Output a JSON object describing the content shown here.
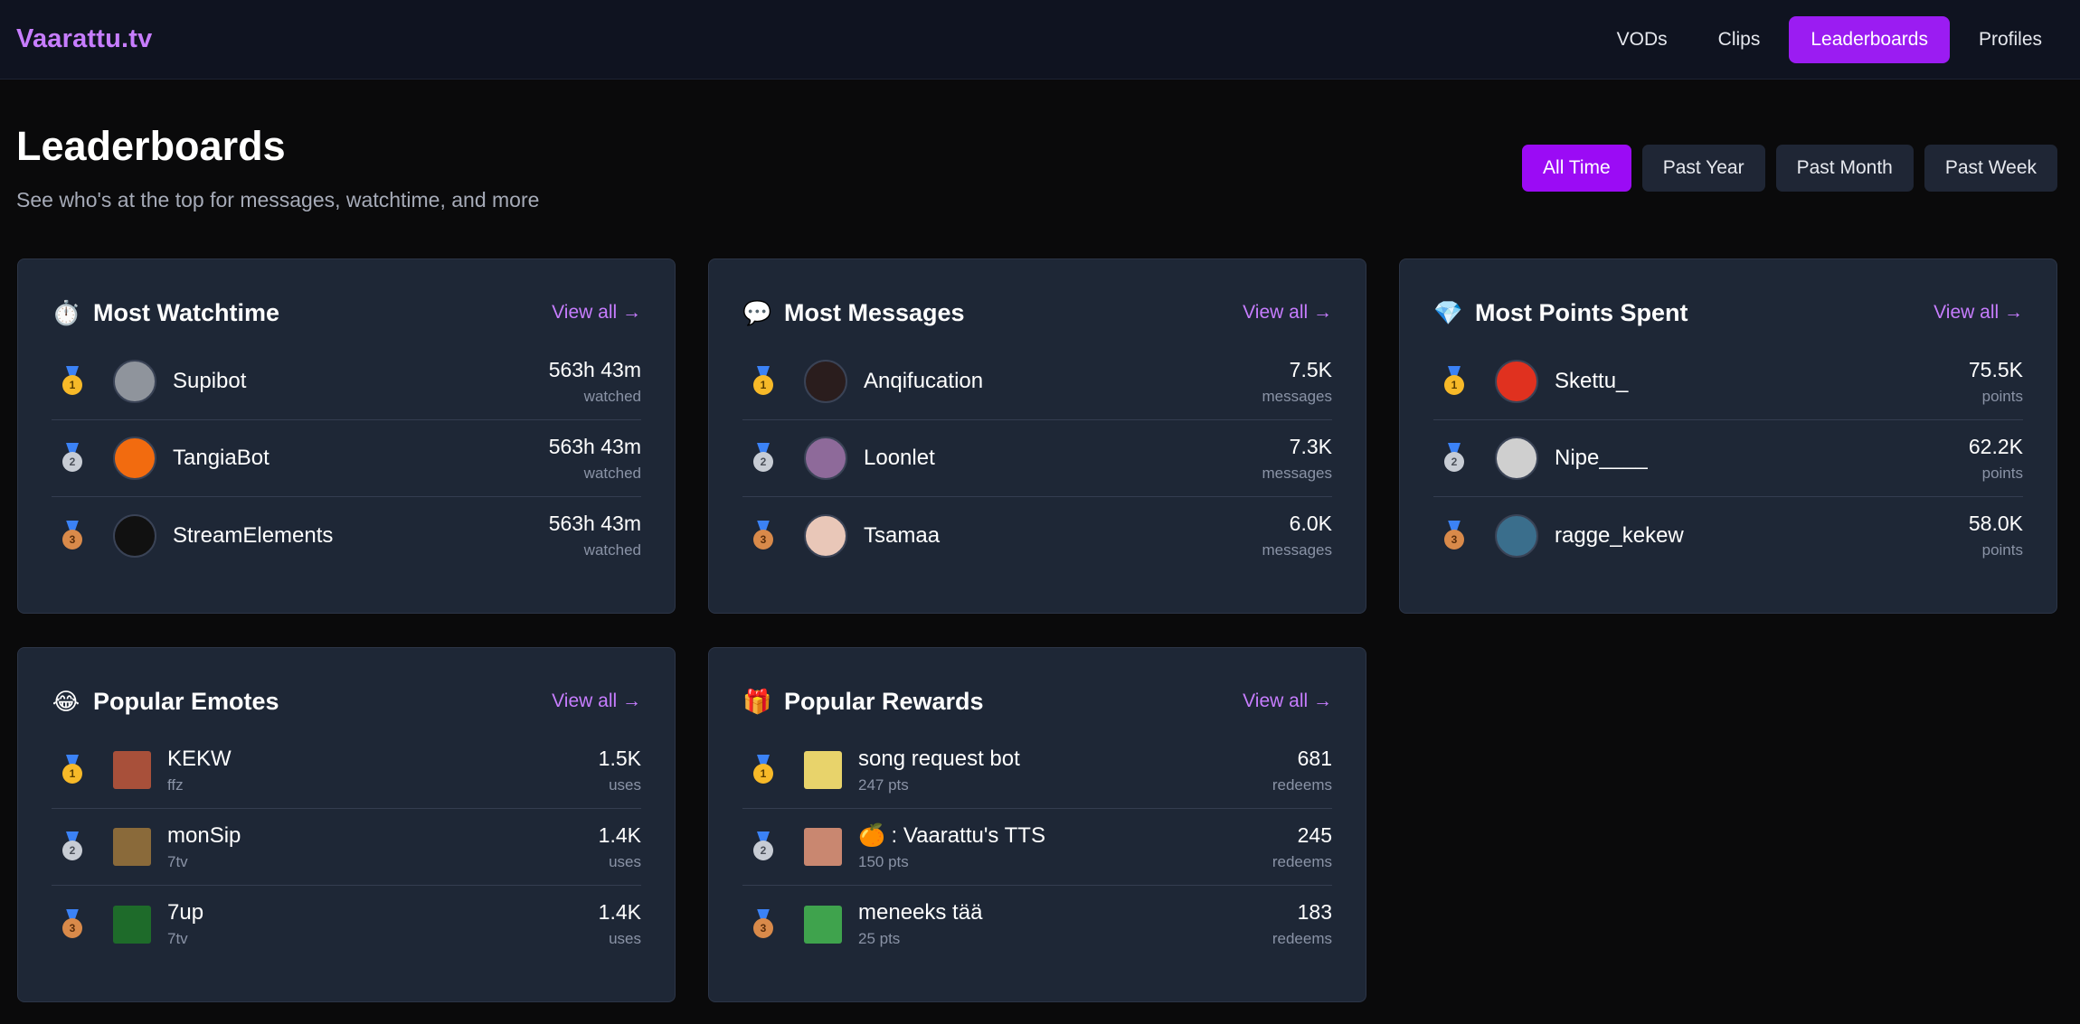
{
  "brand": "Vaarattu.tv",
  "nav": [
    {
      "label": "VODs",
      "active": false
    },
    {
      "label": "Clips",
      "active": false
    },
    {
      "label": "Leaderboards",
      "active": true
    },
    {
      "label": "Profiles",
      "active": false
    }
  ],
  "page": {
    "title": "Leaderboards",
    "subtitle": "See who's at the top for messages, watchtime, and more"
  },
  "filters": [
    {
      "label": "All Time",
      "active": true
    },
    {
      "label": "Past Year",
      "active": false
    },
    {
      "label": "Past Month",
      "active": false
    },
    {
      "label": "Past Week",
      "active": false
    }
  ],
  "view_all_label": "View all →",
  "cards": {
    "watchtime": {
      "title": "Most Watchtime",
      "icon": "⏱️",
      "entries": [
        {
          "rank": "1",
          "name": "Supibot",
          "value": "563h 43m",
          "unit": "watched",
          "avatar_color": "#8f949c"
        },
        {
          "rank": "2",
          "name": "TangiaBot",
          "value": "563h 43m",
          "unit": "watched",
          "avatar_color": "#f26b0f"
        },
        {
          "rank": "3",
          "name": "StreamElements",
          "value": "563h 43m",
          "unit": "watched",
          "avatar_color": "#111111"
        }
      ]
    },
    "messages": {
      "title": "Most Messages",
      "icon": "💬",
      "entries": [
        {
          "rank": "1",
          "name": "Anqifucation",
          "value": "7.5K",
          "unit": "messages",
          "avatar_color": "#2a1d1d"
        },
        {
          "rank": "2",
          "name": "Loonlet",
          "value": "7.3K",
          "unit": "messages",
          "avatar_color": "#8e6a9a"
        },
        {
          "rank": "3",
          "name": "Tsamaa",
          "value": "6.0K",
          "unit": "messages",
          "avatar_color": "#e9c7b8"
        }
      ]
    },
    "points": {
      "title": "Most Points Spent",
      "icon": "💎",
      "entries": [
        {
          "rank": "1",
          "name": "Skettu_",
          "value": "75.5K",
          "unit": "points",
          "avatar_color": "#e0311f"
        },
        {
          "rank": "2",
          "name": "Nipe____",
          "value": "62.2K",
          "unit": "points",
          "avatar_color": "#cfcfcf"
        },
        {
          "rank": "3",
          "name": "ragge_kekew",
          "value": "58.0K",
          "unit": "points",
          "avatar_color": "#3a6e8c"
        }
      ]
    },
    "emotes": {
      "title": "Popular Emotes",
      "icon": "😂",
      "entries": [
        {
          "rank": "1",
          "name": "KEKW",
          "sub": "ffz",
          "value": "1.5K",
          "unit": "uses",
          "thumb_color": "#a8503a"
        },
        {
          "rank": "2",
          "name": "monSip",
          "sub": "7tv",
          "value": "1.4K",
          "unit": "uses",
          "thumb_color": "#8a6a3a"
        },
        {
          "rank": "3",
          "name": "7up",
          "sub": "7tv",
          "value": "1.4K",
          "unit": "uses",
          "thumb_color": "#1e6b2a"
        }
      ]
    },
    "rewards": {
      "title": "Popular Rewards",
      "icon": "🎁",
      "entries": [
        {
          "rank": "1",
          "name": "song request bot",
          "sub": "247 pts",
          "value": "681",
          "unit": "redeems",
          "thumb_color": "#e8d36b"
        },
        {
          "rank": "2",
          "name": "🍊 : Vaarattu's TTS",
          "sub": "150 pts",
          "value": "245",
          "unit": "redeems",
          "thumb_color": "#c98770"
        },
        {
          "rank": "3",
          "name": "meneeks tää",
          "sub": "25 pts",
          "value": "183",
          "unit": "redeems",
          "thumb_color": "#3fa34d"
        }
      ]
    }
  },
  "colors": {
    "accent": "#9b1cf2",
    "link": "#c77dff",
    "card_bg": "#1e2736"
  }
}
